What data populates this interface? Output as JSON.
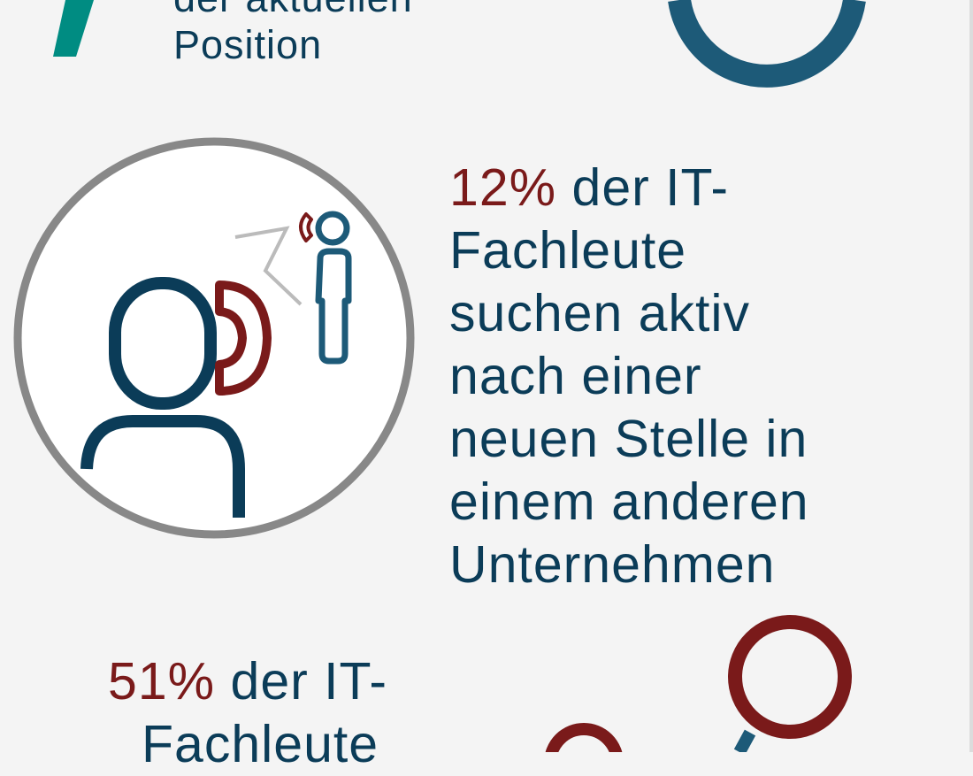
{
  "colors": {
    "navy": "#0b3c58",
    "dark_red": "#7a1a1a",
    "teal": "#008c82",
    "ring_gray": "#888888",
    "background": "#f4f4f4"
  },
  "top_section": {
    "lines": [
      "der aktuellen",
      "Position"
    ]
  },
  "middle_section": {
    "icon": "person-on-phone-icon",
    "highlight": "12%",
    "lines": [
      "der IT-",
      "Fachleute",
      "suchen aktiv",
      "nach einer",
      "neuen Stelle in",
      "einem anderen",
      "Unternehmen"
    ]
  },
  "bottom_section": {
    "icon": "network-nodes-icon",
    "highlight": "51%",
    "lines": [
      "der IT-",
      "Fachleute"
    ]
  }
}
